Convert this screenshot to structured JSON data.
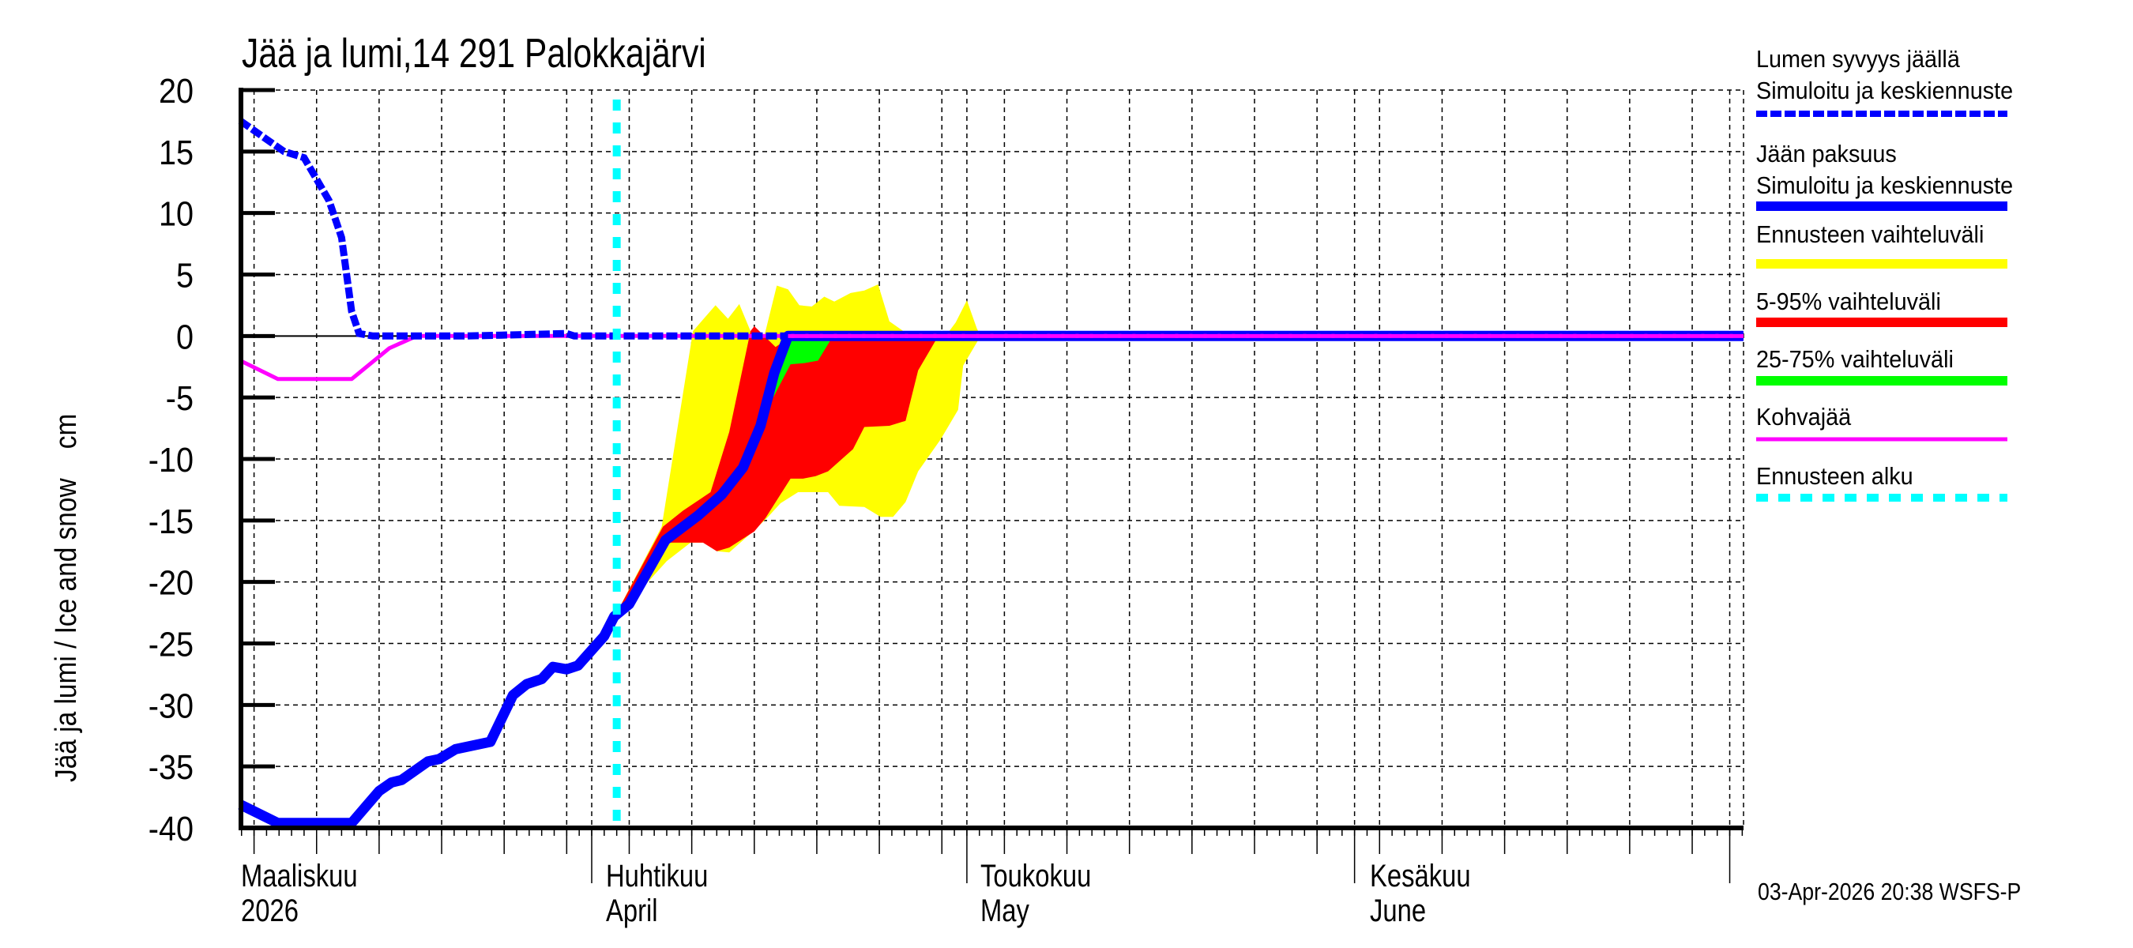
{
  "title": "Jää ja lumi,14 291 Palokkajärvi",
  "footer": "03-Apr-2026 20:38 WSFS-P",
  "y_axis_label": "Jää ja lumi / Ice and snow    cm",
  "legend": [
    {
      "id": "snow",
      "lines": [
        "Lumen syvyys jäällä",
        "Simuloitu ja keskiennuste"
      ],
      "color": "#0000ff",
      "style": "dashed"
    },
    {
      "id": "ice",
      "lines": [
        "Jään paksuus",
        "Simuloitu ja keskiennuste"
      ],
      "color": "#0000ff",
      "style": "solid"
    },
    {
      "id": "range",
      "lines": [
        "Ennusteen vaihteluväli"
      ],
      "color": "#ffff00",
      "style": "solid"
    },
    {
      "id": "p5_95",
      "lines": [
        "5-95% vaihteluväli"
      ],
      "color": "#ff0000",
      "style": "solid"
    },
    {
      "id": "p25_75",
      "lines": [
        "25-75% vaihteluväli"
      ],
      "color": "#00ff00",
      "style": "solid"
    },
    {
      "id": "slush",
      "lines": [
        "Kohvajää"
      ],
      "color": "#ff00ff",
      "style": "thin"
    },
    {
      "id": "fc_start",
      "lines": [
        "Ennusteen alku"
      ],
      "color": "#00ffff",
      "style": "dotted"
    }
  ],
  "x_axis": {
    "months": [
      {
        "fi": "Maaliskuu",
        "en": "2026",
        "day": -31
      },
      {
        "fi": "Huhtikuu",
        "en": "April",
        "day": 0
      },
      {
        "fi": "Toukokuu",
        "en": "May",
        "day": 30
      },
      {
        "fi": "Kesäkuu",
        "en": "June",
        "day": 61
      }
    ]
  },
  "chart_data": {
    "type": "line",
    "title": "Jää ja lumi,14 291 Palokkajärvi",
    "xlabel": "",
    "ylabel": "Jää ja lumi / Ice and snow cm",
    "x_unit": "days from 2026-04-01",
    "xlim": [
      -28.1,
      92.1
    ],
    "ylim": [
      -40,
      20
    ],
    "yticks": [
      20,
      15,
      10,
      5,
      0,
      -5,
      -10,
      -15,
      -20,
      -25,
      -30,
      -35,
      -40
    ],
    "x_tick_labels": [
      "Maaliskuu 2026",
      "Huhtikuu April",
      "Toukokuu May",
      "Kesäkuu June"
    ],
    "grid": true,
    "forecast_start_day": 2,
    "series": [
      {
        "name": "Lumen syvyys jäällä – Simuloitu ja keskiennuste",
        "color": "#0000ff",
        "style": "dashed",
        "x": [
          -28.1,
          -26.0,
          -24.6,
          -23.0,
          -21.0,
          -20.0,
          -19.2,
          -18.6,
          -17.5,
          -16.0,
          -10,
          -2.0,
          -1.4,
          0,
          2,
          92.1
        ],
        "y": [
          17.5,
          16.0,
          15.0,
          14.5,
          11.0,
          8.0,
          2.0,
          0.2,
          0.0,
          0.0,
          0.0,
          0.2,
          0.0,
          0.0,
          0.0,
          0.0
        ]
      },
      {
        "name": "Jään paksuus – Simuloitu ja keskiennuste",
        "color": "#0000ff",
        "style": "solid",
        "x": [
          -28.1,
          -25.1,
          -19.2,
          -17.0,
          -16.0,
          -15.2,
          -13.1,
          -12.2,
          -10.9,
          -8.1,
          -6.3,
          -5.2,
          -4.0,
          -3.1,
          -2.0,
          -1.1,
          1.0,
          1.8,
          3.0,
          5.9,
          8.5,
          10.4,
          12.1,
          13.5,
          14.6,
          15.7,
          92.1
        ],
        "y": [
          -38.1,
          -39.6,
          -39.6,
          -37.0,
          -36.3,
          -36.1,
          -34.6,
          -34.4,
          -33.6,
          -33.0,
          -29.2,
          -28.3,
          -27.9,
          -26.9,
          -27.1,
          -26.8,
          -24.4,
          -22.8,
          -21.8,
          -16.6,
          -14.6,
          -12.9,
          -10.7,
          -7.3,
          -3.0,
          0.0,
          0.0
        ]
      },
      {
        "name": "Kohvajää",
        "color": "#ff00ff",
        "style": "thin",
        "x": [
          -28.1,
          -25.1,
          -19.2,
          -16.2,
          -14.0,
          92.1
        ],
        "y": [
          -2.0,
          -3.5,
          -3.5,
          -1.0,
          0.0,
          0.0
        ]
      }
    ],
    "bands": [
      {
        "name": "Ennusteen vaihteluväli",
        "color": "#ffff00",
        "upper": {
          "x": [
            2.0,
            5.6,
            8.1,
            9.9,
            10.9,
            11.8,
            12.7,
            13.8,
            14.8,
            15.7,
            16.6,
            17.6,
            18.6,
            19.4,
            20.7,
            21.8,
            22.9,
            23.8,
            25.2,
            28.3,
            29.1,
            30.0,
            30.8,
            31.1
          ],
          "y": [
            -22.5,
            -15.5,
            0.4,
            2.5,
            1.4,
            2.6,
            0.4,
            0.0,
            4.1,
            3.8,
            2.5,
            2.4,
            3.2,
            2.8,
            3.5,
            3.7,
            4.2,
            1.2,
            0.2,
            0.0,
            1.1,
            2.9,
            0.6,
            0.0
          ]
        },
        "lower": {
          "x": [
            2.0,
            6.0,
            7.9,
            9.0,
            10.0,
            11.0,
            13.0,
            14.1,
            15.1,
            16.5,
            18.9,
            19.8,
            21.8,
            23.1,
            24.1,
            25.1,
            26.1,
            27.9,
            29.3,
            29.7,
            31.1
          ],
          "y": [
            -22.8,
            -18.3,
            -16.8,
            -16.8,
            -17.5,
            -17.6,
            -15.8,
            -14.7,
            -13.6,
            -12.7,
            -12.7,
            -13.8,
            -13.9,
            -14.7,
            -14.7,
            -13.5,
            -11.0,
            -8.4,
            -6.0,
            -2.4,
            0.0
          ]
        }
      },
      {
        "name": "5-95% vaihteluväli",
        "color": "#ff0000",
        "upper": {
          "x": [
            2.0,
            5.7,
            7.3,
            9.5,
            11.0,
            12.7,
            13.0,
            14.7,
            16.0,
            30.0
          ],
          "y": [
            -22.5,
            -15.5,
            -14.2,
            -12.7,
            -7.8,
            0.4,
            0.8,
            -0.9,
            0.0,
            0.0
          ]
        },
        "lower": {
          "x": [
            2.0,
            5.7,
            7.1,
            8.9,
            10.0,
            11.0,
            13.0,
            13.9,
            15.9,
            16.9,
            17.9,
            18.9,
            20.9,
            21.8,
            23.8,
            25.1,
            26.1,
            27.6,
            28.9,
            30.0
          ],
          "y": [
            -22.8,
            -16.8,
            -16.8,
            -16.8,
            -17.5,
            -17.2,
            -15.9,
            -14.8,
            -11.6,
            -11.6,
            -11.4,
            -11.0,
            -9.2,
            -7.4,
            -7.3,
            -6.9,
            -2.8,
            -0.2,
            0.0,
            0.0
          ]
        }
      },
      {
        "name": "25-75% vaihteluväli",
        "color": "#00ff00",
        "upper": {
          "x": [
            9.5,
            12.0,
            14.0,
            15.6,
            16.0,
            19.3
          ],
          "y": [
            -13.8,
            -10.3,
            -6.0,
            -0.5,
            0.0,
            0.0
          ]
        },
        "lower": {
          "x": [
            9.5,
            12.0,
            14.0,
            15.9,
            17.0,
            18.1,
            19.3
          ],
          "y": [
            -14.0,
            -10.3,
            -6.0,
            -2.3,
            -2.2,
            -2.0,
            0.0
          ]
        }
      }
    ]
  }
}
